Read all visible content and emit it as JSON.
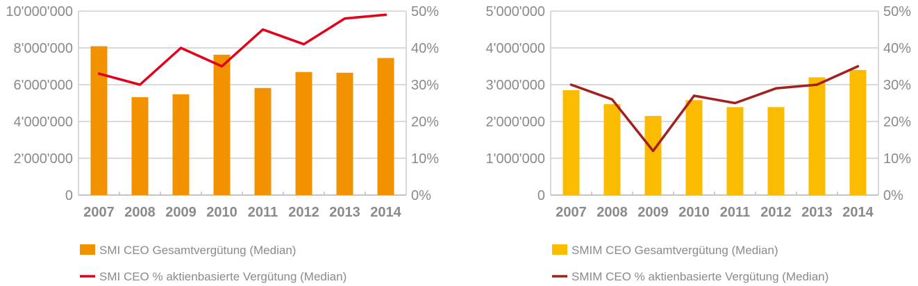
{
  "chart_data": [
    {
      "type": "bar+line",
      "categories": [
        "2007",
        "2008",
        "2009",
        "2010",
        "2011",
        "2012",
        "2013",
        "2014"
      ],
      "y_left": {
        "ylim": [
          0,
          10000000
        ],
        "ticks": [
          "0",
          "2'000'000",
          "4'000'000",
          "6'000'000",
          "8'000'000",
          "10'000'000"
        ]
      },
      "y_right": {
        "ylim": [
          0,
          50
        ],
        "ticks": [
          "0%",
          "10%",
          "20%",
          "30%",
          "40%",
          "50%"
        ]
      },
      "grid": true,
      "legend_position": "bottom",
      "series": [
        {
          "name": "SMI CEO Gesamtvergütung (Median)",
          "kind": "bar",
          "axis": "left",
          "color": "#f39200",
          "values": [
            8090000,
            5320000,
            5480000,
            7630000,
            5820000,
            6690000,
            6650000,
            7450000
          ]
        },
        {
          "name": "SMI CEO % aktienbasierte Vergütung (Median)",
          "kind": "line",
          "axis": "right",
          "color": "#e2001a",
          "values": [
            33,
            30,
            40,
            35,
            45,
            41,
            48,
            49
          ]
        }
      ]
    },
    {
      "type": "bar+line",
      "categories": [
        "2007",
        "2008",
        "2009",
        "2010",
        "2011",
        "2012",
        "2013",
        "2014"
      ],
      "y_left": {
        "ylim": [
          0,
          5000000
        ],
        "ticks": [
          "0",
          "1'000'000",
          "2'000'000",
          "3'000'000",
          "4'000'000",
          "5'000'000"
        ]
      },
      "y_right": {
        "ylim": [
          0,
          50
        ],
        "ticks": [
          "0%",
          "10%",
          "20%",
          "30%",
          "40%",
          "50%"
        ]
      },
      "grid": true,
      "legend_position": "bottom",
      "series": [
        {
          "name": "SMIM CEO Gesamtvergütung (Median)",
          "kind": "bar",
          "axis": "left",
          "color": "#fbbb00",
          "values": [
            2850000,
            2470000,
            2150000,
            2580000,
            2390000,
            2390000,
            3200000,
            3400000
          ]
        },
        {
          "name": "SMIM CEO % aktienbasierte Vergütung (Median)",
          "kind": "line",
          "axis": "right",
          "color": "#a32020",
          "values": [
            30,
            26,
            12,
            27,
            25,
            29,
            30,
            35
          ]
        }
      ]
    }
  ]
}
